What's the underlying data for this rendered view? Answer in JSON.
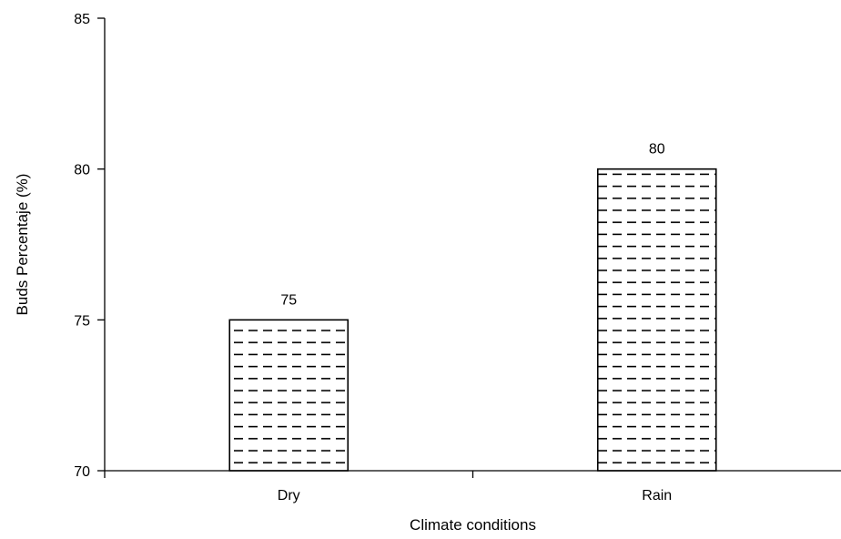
{
  "chart_data": {
    "type": "bar",
    "categories": [
      "Dry",
      "Rain"
    ],
    "values": [
      75,
      80
    ],
    "data_labels": [
      "75",
      "80"
    ],
    "xlabel": "Climate conditions",
    "ylabel": "Buds Percentaje (%)",
    "ylim": [
      70,
      85
    ],
    "yticks": [
      70,
      75,
      80,
      85
    ],
    "ytick_labels": [
      "70",
      "75",
      "80",
      "85"
    ],
    "grid": false,
    "legend": "none",
    "bar_fill": "dashed-hatch",
    "colors": {
      "bar_fill": "#ffffff",
      "bar_stroke": "#000000",
      "hatch": "#000000",
      "axis": "#000000"
    }
  }
}
